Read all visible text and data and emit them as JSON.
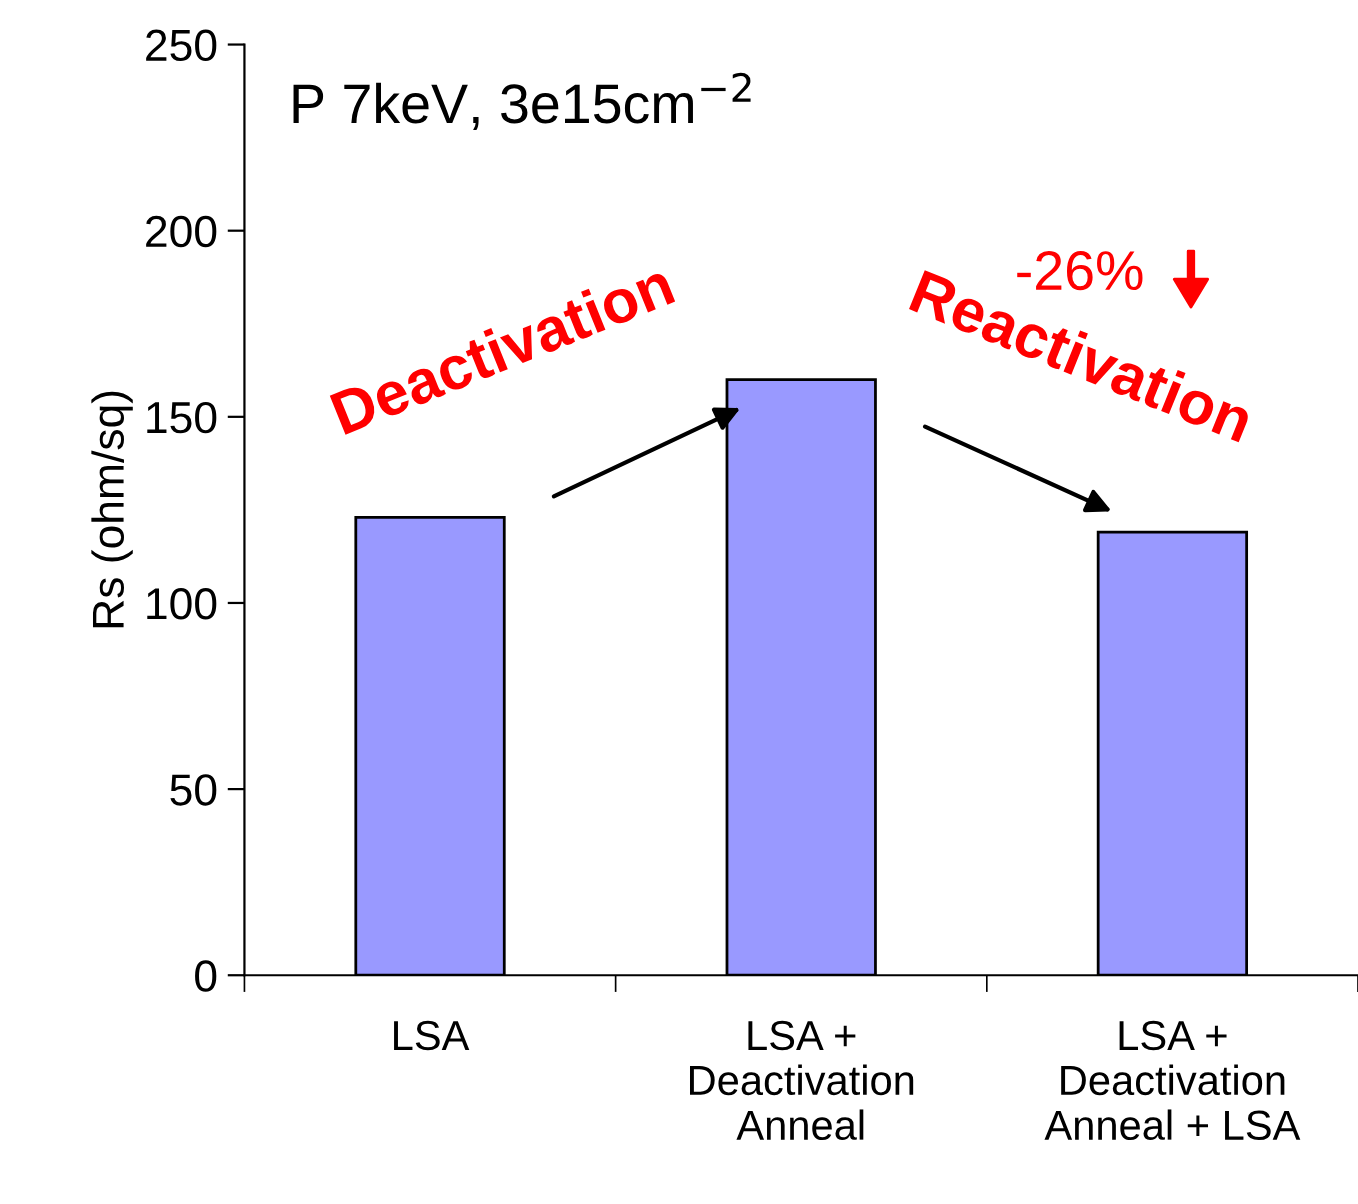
{
  "chart_data": {
    "type": "bar",
    "title": "P 7keV, 3e15cm$^{−2}$",
    "ylabel": "Rs (ohm/sq)",
    "categories": [
      "LSA",
      "LSA +\nDeactivation\nAnneal",
      "LSA +\nDeactivation\nAnneal + LSA"
    ],
    "values": [
      123,
      160,
      119
    ],
    "color": "#9999ff",
    "ylim": [
      0,
      250
    ],
    "yticks": [
      0,
      50,
      100,
      150,
      200,
      250
    ],
    "grid": false,
    "annotations": [
      "Deactivation",
      "Reactivation",
      "-26%"
    ]
  }
}
